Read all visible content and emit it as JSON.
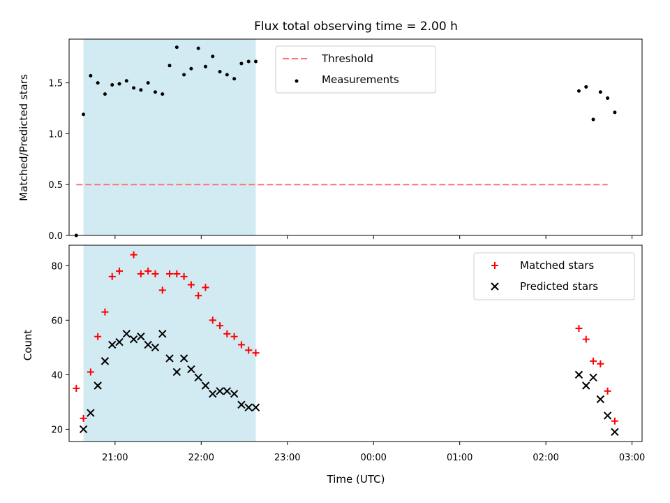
{
  "colors": {
    "background": "#ffffff",
    "shade": "#add8e6",
    "threshold": "#ff7070",
    "measurement": "#000000",
    "matched": "#ff0000",
    "predicted": "#000000"
  },
  "chart_data": [
    {
      "type": "scatter",
      "title": "Flux total observing time = 2.00 h",
      "xlabel": "",
      "ylabel": "Matched/Predicted stars",
      "xlim": [
        "20:28",
        "03:07"
      ],
      "ylim": [
        0,
        1.93
      ],
      "yticks": [
        "0.0",
        "0.5",
        "1.0",
        "1.5"
      ],
      "shaded_region": [
        "20:38",
        "22:38"
      ],
      "legend_position": "top-center",
      "threshold": {
        "name": "Threshold",
        "value": 0.5,
        "x_range": [
          "20:33",
          "02:43"
        ]
      },
      "series": [
        {
          "name": "Measurements",
          "x": [
            "20:33",
            "20:38",
            "20:43",
            "20:48",
            "20:53",
            "20:58",
            "21:03",
            "21:08",
            "21:13",
            "21:18",
            "21:23",
            "21:28",
            "21:33",
            "21:38",
            "21:43",
            "21:48",
            "21:53",
            "21:58",
            "22:03",
            "22:08",
            "22:13",
            "22:18",
            "22:23",
            "22:28",
            "22:33",
            "22:38",
            "02:23",
            "02:28",
            "02:33",
            "02:38",
            "02:43",
            "02:48"
          ],
          "y": [
            0.0,
            1.19,
            1.57,
            1.5,
            1.39,
            1.48,
            1.49,
            1.52,
            1.45,
            1.43,
            1.5,
            1.41,
            1.39,
            1.67,
            1.85,
            1.58,
            1.64,
            1.84,
            1.66,
            1.76,
            1.61,
            1.58,
            1.54,
            1.69,
            1.71,
            1.71,
            1.42,
            1.46,
            1.14,
            1.41,
            1.35,
            1.21
          ]
        }
      ]
    },
    {
      "type": "scatter",
      "title": "",
      "xlabel": "Time (UTC)",
      "ylabel": "Count",
      "xlim": [
        "20:28",
        "03:07"
      ],
      "ylim": [
        15.5,
        87.5
      ],
      "yticks": [
        "20",
        "40",
        "60",
        "80"
      ],
      "xticks": [
        "21:00",
        "22:00",
        "23:00",
        "00:00",
        "01:00",
        "02:00",
        "03:00"
      ],
      "shaded_region": [
        "20:38",
        "22:38"
      ],
      "legend_position": "top-right",
      "series": [
        {
          "name": "Matched stars",
          "marker": "+",
          "x": [
            "20:33",
            "20:38",
            "20:43",
            "20:48",
            "20:53",
            "20:58",
            "21:03",
            "21:13",
            "21:18",
            "21:23",
            "21:28",
            "21:33",
            "21:38",
            "21:43",
            "21:48",
            "21:53",
            "21:58",
            "22:03",
            "22:08",
            "22:13",
            "22:18",
            "22:23",
            "22:28",
            "22:33",
            "22:38",
            "02:23",
            "02:28",
            "02:33",
            "02:38",
            "02:43",
            "02:48"
          ],
          "y": [
            35,
            24,
            41,
            54,
            63,
            76,
            78,
            84,
            77,
            78,
            77,
            71,
            77,
            77,
            76,
            73,
            69,
            72,
            60,
            58,
            55,
            54,
            51,
            49,
            48,
            57,
            53,
            45,
            44,
            34,
            23
          ]
        },
        {
          "name": "Predicted stars",
          "marker": "x",
          "x": [
            "20:38",
            "20:43",
            "20:48",
            "20:53",
            "20:58",
            "21:03",
            "21:08",
            "21:13",
            "21:18",
            "21:23",
            "21:28",
            "21:33",
            "21:38",
            "21:43",
            "21:48",
            "21:53",
            "21:58",
            "22:03",
            "22:08",
            "22:13",
            "22:18",
            "22:23",
            "22:28",
            "22:33",
            "22:38",
            "02:23",
            "02:28",
            "02:33",
            "02:38",
            "02:43",
            "02:48"
          ],
          "y": [
            20,
            26,
            36,
            45,
            51,
            52,
            55,
            53,
            54,
            51,
            50,
            55,
            46,
            41,
            46,
            42,
            39,
            36,
            33,
            34,
            34,
            33,
            29,
            28,
            28,
            40,
            36,
            39,
            31,
            25,
            19
          ]
        }
      ]
    }
  ]
}
